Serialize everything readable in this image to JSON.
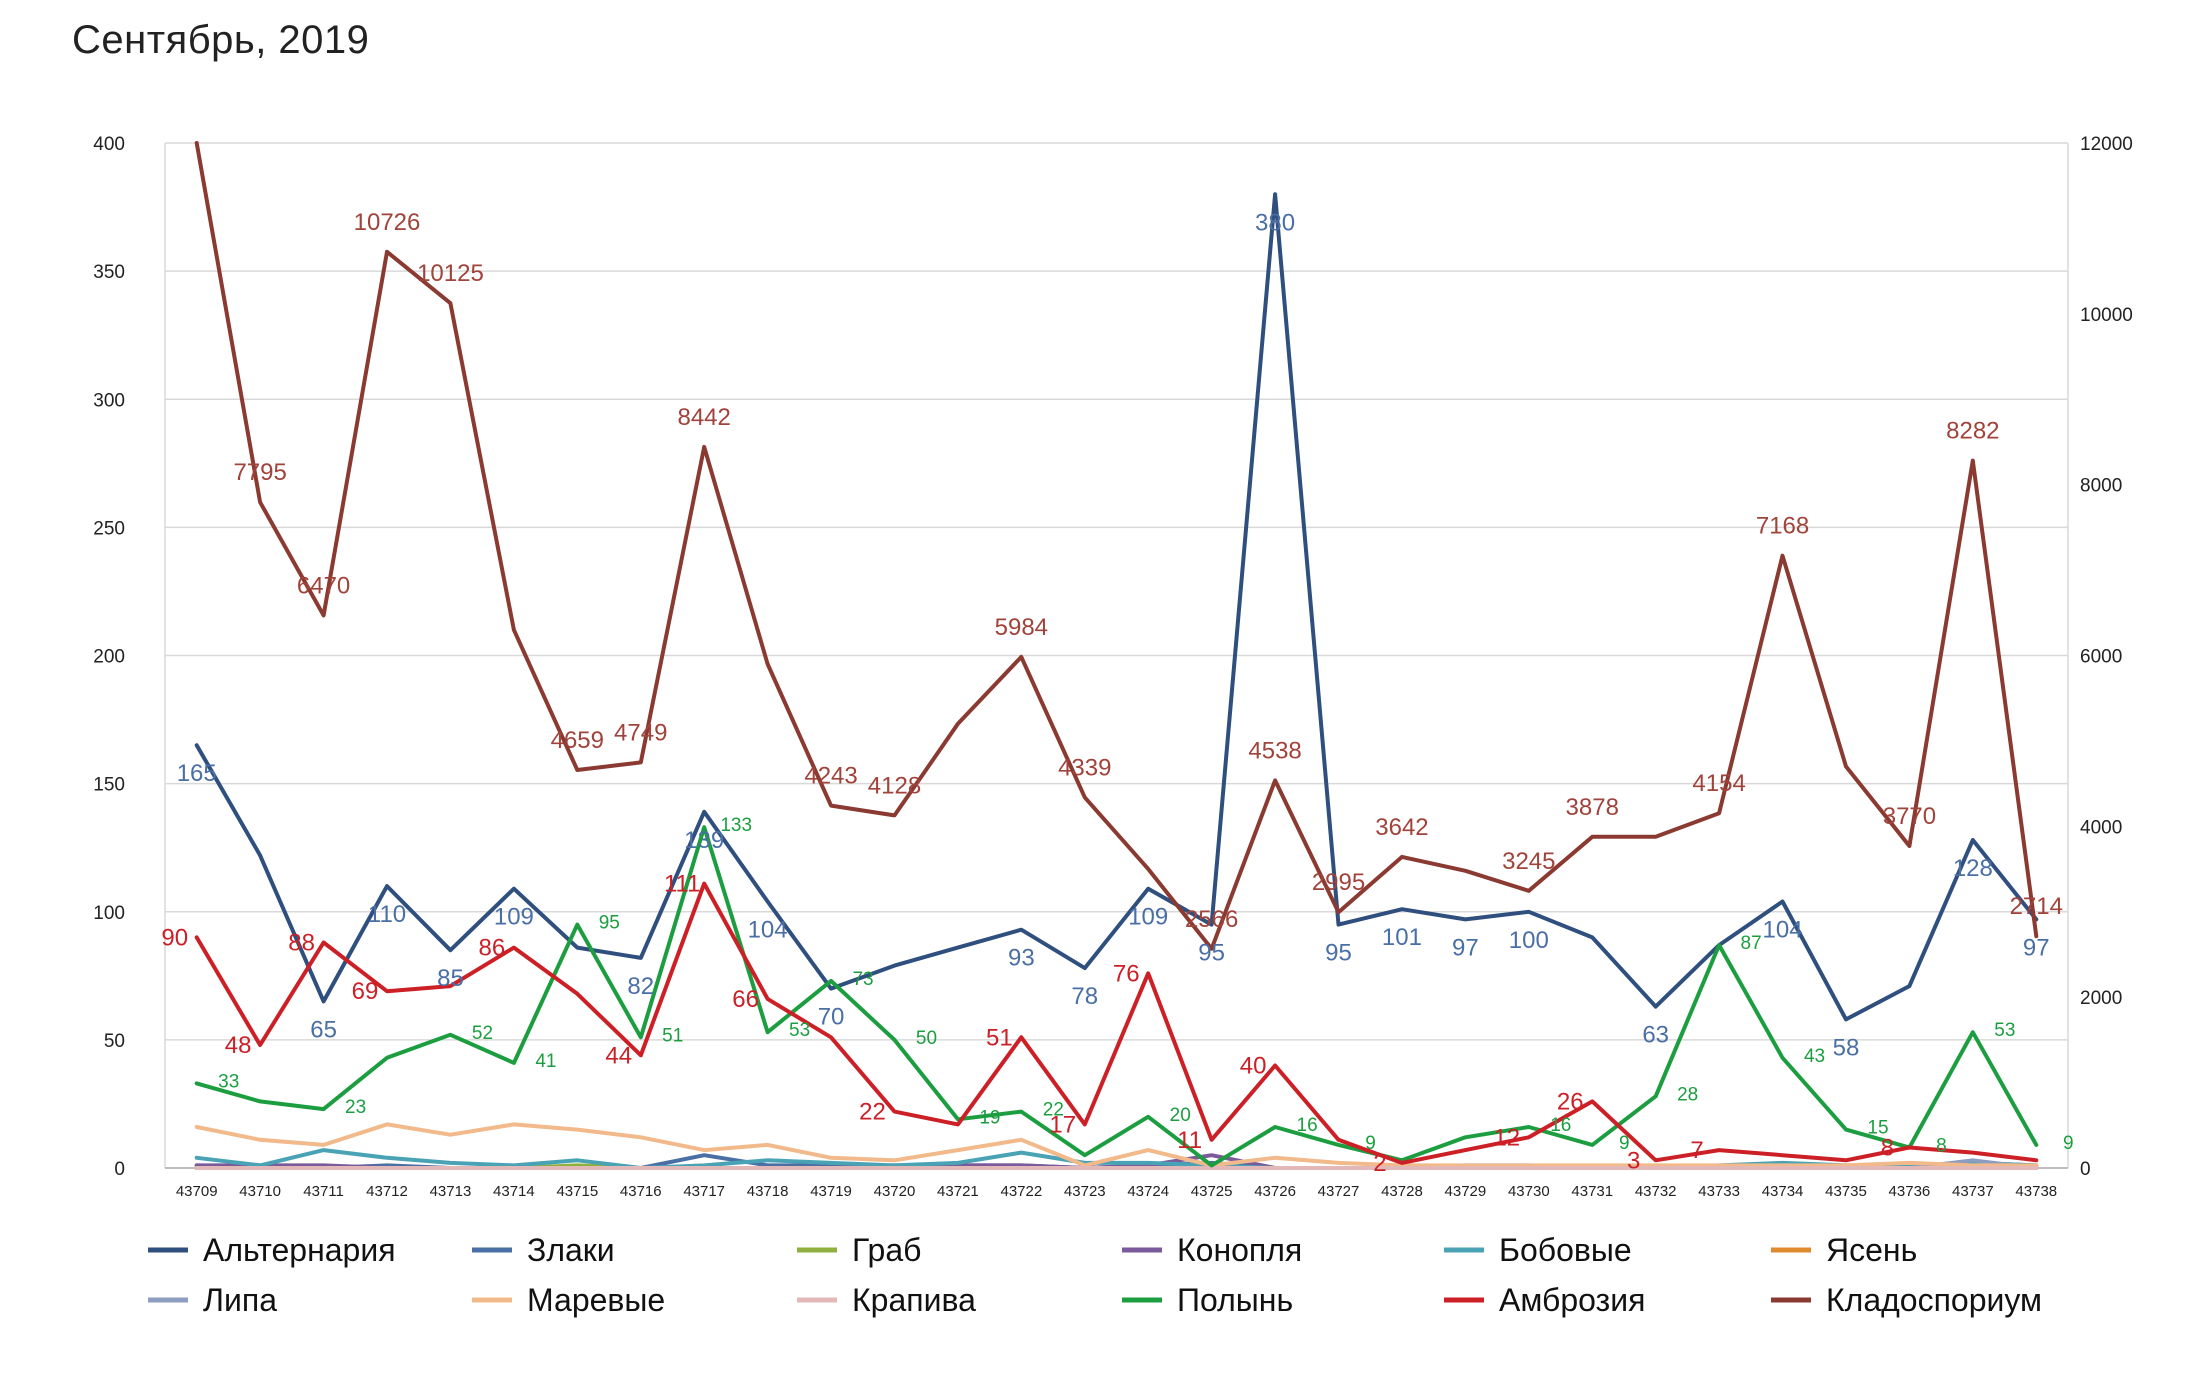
{
  "title": "Сентябрь, 2019",
  "colors": {
    "Альтернария": "#2f4f7f",
    "Злаки": "#4a6fa5",
    "Граб": "#8fb03c",
    "Конопля": "#7b5a9b",
    "Бобовые": "#4aa3b5",
    "Ясень": "#e08a2e",
    "Липа": "#8c9dbf",
    "Маревые": "#f2b98a",
    "Крапива": "#e3b8b8",
    "Полынь": "#1c9e40",
    "Амброзия": "#cc1f26",
    "Кладоспориум": "#8b3a32"
  },
  "chart_data": {
    "type": "line",
    "title": "Сентябрь, 2019",
    "categories": [
      "43709",
      "43710",
      "43711",
      "43712",
      "43713",
      "43714",
      "43715",
      "43716",
      "43717",
      "43718",
      "43719",
      "43720",
      "43721",
      "43722",
      "43723",
      "43724",
      "43725",
      "43726",
      "43727",
      "43728",
      "43729",
      "43730",
      "43731",
      "43732",
      "43733",
      "43734",
      "43735",
      "43736",
      "43737",
      "43738"
    ],
    "y_left": {
      "min": 0,
      "max": 400,
      "ticks": [
        "0",
        "50",
        "100",
        "150",
        "200",
        "250",
        "300",
        "350",
        "400"
      ]
    },
    "y_right": {
      "min": 0,
      "max": 12000,
      "ticks": [
        "0",
        "2000",
        "4000",
        "6000",
        "8000",
        "10000",
        "12000"
      ]
    },
    "grid": true,
    "legend_position": "bottom",
    "series": [
      {
        "name": "Альтернария",
        "axis": "left",
        "color": "#2f4f7f",
        "values": [
          165,
          122,
          65,
          110,
          85,
          109,
          86,
          82,
          139,
          104,
          70,
          79,
          86,
          93,
          78,
          109,
          95,
          380,
          95,
          101,
          97,
          100,
          90,
          63,
          87,
          104,
          58,
          71,
          128,
          97
        ],
        "labels": [
          "165",
          "",
          "65",
          "110",
          "85",
          "109",
          "",
          "82",
          "139",
          "104",
          "70",
          "",
          "",
          "93",
          "78",
          "109",
          "95",
          "380",
          "95",
          "101",
          "97",
          "100",
          "",
          "63",
          "",
          "104",
          "58",
          "",
          "128",
          "97"
        ]
      },
      {
        "name": "Злаки",
        "axis": "left",
        "color": "#4a6fa5",
        "values": [
          1,
          0,
          0,
          1,
          0,
          0,
          0,
          0,
          5,
          1,
          1,
          0,
          1,
          1,
          0,
          1,
          2,
          0,
          0,
          0,
          0,
          0,
          0,
          0,
          0,
          1,
          0,
          0,
          2,
          1
        ],
        "labels": []
      },
      {
        "name": "Граб",
        "axis": "left",
        "color": "#8fb03c",
        "values": [
          0,
          0,
          0,
          0,
          0,
          0,
          1,
          0,
          0,
          0,
          0,
          0,
          0,
          0,
          0,
          0,
          0,
          0,
          0,
          0,
          0,
          0,
          0,
          0,
          0,
          0,
          0,
          0,
          0,
          0
        ],
        "labels": []
      },
      {
        "name": "Конопля",
        "axis": "left",
        "color": "#7b5a9b",
        "values": [
          1,
          1,
          1,
          0,
          0,
          0,
          0,
          0,
          0,
          0,
          0,
          1,
          1,
          1,
          0,
          1,
          5,
          0,
          0,
          0,
          0,
          0,
          0,
          0,
          0,
          0,
          0,
          0,
          1,
          0
        ],
        "labels": []
      },
      {
        "name": "Бобовые",
        "axis": "left",
        "color": "#4aa3b5",
        "values": [
          4,
          1,
          7,
          4,
          2,
          1,
          3,
          0,
          1,
          3,
          2,
          1,
          2,
          6,
          2,
          2,
          1,
          0,
          0,
          0,
          1,
          1,
          0,
          0,
          1,
          2,
          1,
          1,
          2,
          1
        ],
        "labels": []
      },
      {
        "name": "Ясень",
        "axis": "left",
        "color": "#e08a2e",
        "values": [
          0,
          0,
          0,
          0,
          0,
          0,
          0,
          0,
          0,
          0,
          0,
          0,
          0,
          0,
          0,
          0,
          0,
          0,
          0,
          0,
          0,
          0,
          0,
          0,
          0,
          0,
          0,
          0,
          0,
          0
        ],
        "labels": []
      },
      {
        "name": "Липа",
        "axis": "left",
        "color": "#8c9dbf",
        "values": [
          0,
          0,
          0,
          0,
          0,
          0,
          0,
          0,
          0,
          0,
          0,
          0,
          0,
          0,
          0,
          0,
          0,
          0,
          0,
          0,
          0,
          0,
          0,
          0,
          0,
          0,
          0,
          0,
          3,
          0
        ],
        "labels": []
      },
      {
        "name": "Маревые",
        "axis": "left",
        "color": "#f2b98a",
        "values": [
          16,
          11,
          9,
          17,
          13,
          17,
          15,
          12,
          7,
          9,
          4,
          3,
          7,
          11,
          1,
          7,
          1,
          4,
          2,
          1,
          1,
          1,
          1,
          1,
          1,
          1,
          1,
          2,
          1,
          1
        ],
        "labels": []
      },
      {
        "name": "Крапива",
        "axis": "left",
        "color": "#e3b8b8",
        "values": [
          0,
          0,
          0,
          0,
          0,
          0,
          0,
          0,
          0,
          0,
          0,
          0,
          0,
          0,
          0,
          0,
          0,
          0,
          0,
          0,
          0,
          0,
          0,
          0,
          0,
          0,
          0,
          0,
          0,
          0
        ],
        "labels": []
      },
      {
        "name": "Полынь",
        "axis": "left",
        "color": "#1c9e40",
        "values": [
          33,
          26,
          23,
          43,
          52,
          41,
          95,
          51,
          133,
          53,
          73,
          50,
          19,
          22,
          5,
          20,
          1,
          16,
          9,
          3,
          12,
          16,
          9,
          28,
          87,
          43,
          15,
          8,
          53,
          9
        ],
        "labels": [
          "33",
          "",
          "23",
          "",
          "52",
          "41",
          "95",
          "51",
          "133",
          "53",
          "73",
          "50",
          "19",
          "22",
          "",
          "20",
          "",
          "16",
          "9",
          "",
          "",
          "16",
          "9",
          "28",
          "87",
          "43",
          "15",
          "8",
          "53",
          "9"
        ]
      },
      {
        "name": "Амброзия",
        "axis": "left",
        "color": "#cc1f26",
        "values": [
          90,
          48,
          88,
          69,
          71,
          86,
          68,
          44,
          111,
          66,
          51,
          22,
          17,
          51,
          17,
          76,
          11,
          40,
          11,
          2,
          7,
          12,
          26,
          3,
          7,
          5,
          3,
          8,
          6,
          3
        ],
        "labels": [
          "90",
          "48",
          "88",
          "69",
          "",
          "86",
          "",
          "44",
          "111",
          "66",
          "",
          "22",
          "",
          "51",
          "17",
          "76",
          "11",
          "40",
          "",
          "2",
          "",
          "12",
          "26",
          "3",
          "7",
          "",
          "",
          "8",
          "",
          ""
        ]
      },
      {
        "name": "Кладоспориум",
        "axis": "right",
        "color": "#8b3a32",
        "values": [
          12000,
          7795,
          6470,
          10726,
          10125,
          6300,
          4659,
          4749,
          8442,
          5900,
          4243,
          4128,
          5200,
          5984,
          4339,
          3500,
          2566,
          4538,
          2995,
          3642,
          3480,
          3245,
          3878,
          3878,
          4154,
          7168,
          4700,
          3770,
          8282,
          2714
        ],
        "labels": [
          "",
          "7795",
          "6470",
          "10726",
          "10125",
          "",
          "4659",
          "4749",
          "8442",
          "",
          "4243",
          "4128",
          "",
          "5984",
          "4339",
          "",
          "2566",
          "4538",
          "2995",
          "3642",
          "",
          "3245",
          "3878",
          "",
          "4154",
          "7168",
          "",
          "3770",
          "8282",
          "2714"
        ]
      }
    ]
  },
  "legend": {
    "row1": [
      "Альтернария",
      "Злаки",
      "Граб",
      "Конопля",
      "Бобовые",
      "Ясень"
    ],
    "row2": [
      "Липа",
      "Маревые",
      "Крапива",
      "Полынь",
      "Амброзия",
      "Кладоспориум"
    ]
  }
}
